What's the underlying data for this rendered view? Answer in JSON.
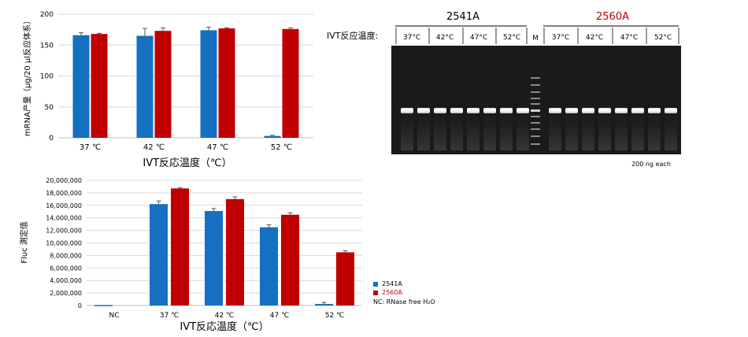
{
  "colors": {
    "s2541": "#1570c2",
    "s2560": "#c00000",
    "gel_bg": "#1a1a1a",
    "grid": "#d9d9d9"
  },
  "chart_data": [
    {
      "type": "bar",
      "categories": [
        "37 ℃",
        "42 ℃",
        "47 ℃",
        "52 ℃"
      ],
      "series": [
        {
          "name": "2541A",
          "values": [
            166,
            165,
            174,
            3
          ],
          "errors": [
            4,
            12,
            5,
            1
          ]
        },
        {
          "name": "2560A",
          "values": [
            168,
            173,
            177,
            176
          ],
          "errors": [
            1,
            5,
            1,
            2
          ]
        }
      ],
      "xlabel": "IVT反応温度（℃）",
      "ylabel": "mRNA产量（μg/20 μl反应体系）",
      "ylim": [
        0,
        200
      ],
      "yticks": [
        "0",
        "50",
        "100",
        "150",
        "200"
      ],
      "grid": true
    },
    {
      "type": "bar",
      "categories": [
        "NC",
        "37 ℃",
        "42 ℃",
        "47 ℃",
        "52 ℃"
      ],
      "series": [
        {
          "name": "2541A",
          "values": [
            80000,
            16200000,
            15100000,
            12500000,
            250000
          ],
          "errors": [
            0,
            500000,
            400000,
            400000,
            250000
          ]
        },
        {
          "name": "2560A",
          "values": [
            0,
            18700000,
            17000000,
            14500000,
            8500000
          ],
          "errors": [
            0,
            100000,
            350000,
            300000,
            250000
          ]
        }
      ],
      "xlabel": "IVT反応温度（℃）",
      "ylabel": "Fluc 測定值",
      "ylim": [
        0,
        20000000
      ],
      "yticks": [
        "0",
        "2,000,000",
        "4,000,000",
        "6,000,000",
        "8,000,000",
        "10,000,000",
        "12,000,000",
        "14,000,000",
        "16,000,000",
        "18,000,000",
        "20,000,000"
      ],
      "grid": true,
      "legend": [
        "2541A",
        "2560A"
      ],
      "legend_note": "NC: RNase free H₂O"
    }
  ],
  "gel": {
    "title_left": "2541A",
    "title_right": "2560A",
    "row_label": "IVT反应温度:",
    "lanes_left": [
      "37°C",
      "42°C",
      "47°C",
      "52°C"
    ],
    "marker": "M",
    "lanes_right": [
      "37°C",
      "42°C",
      "47°C",
      "52°C"
    ],
    "footnote": "200 ng each"
  }
}
